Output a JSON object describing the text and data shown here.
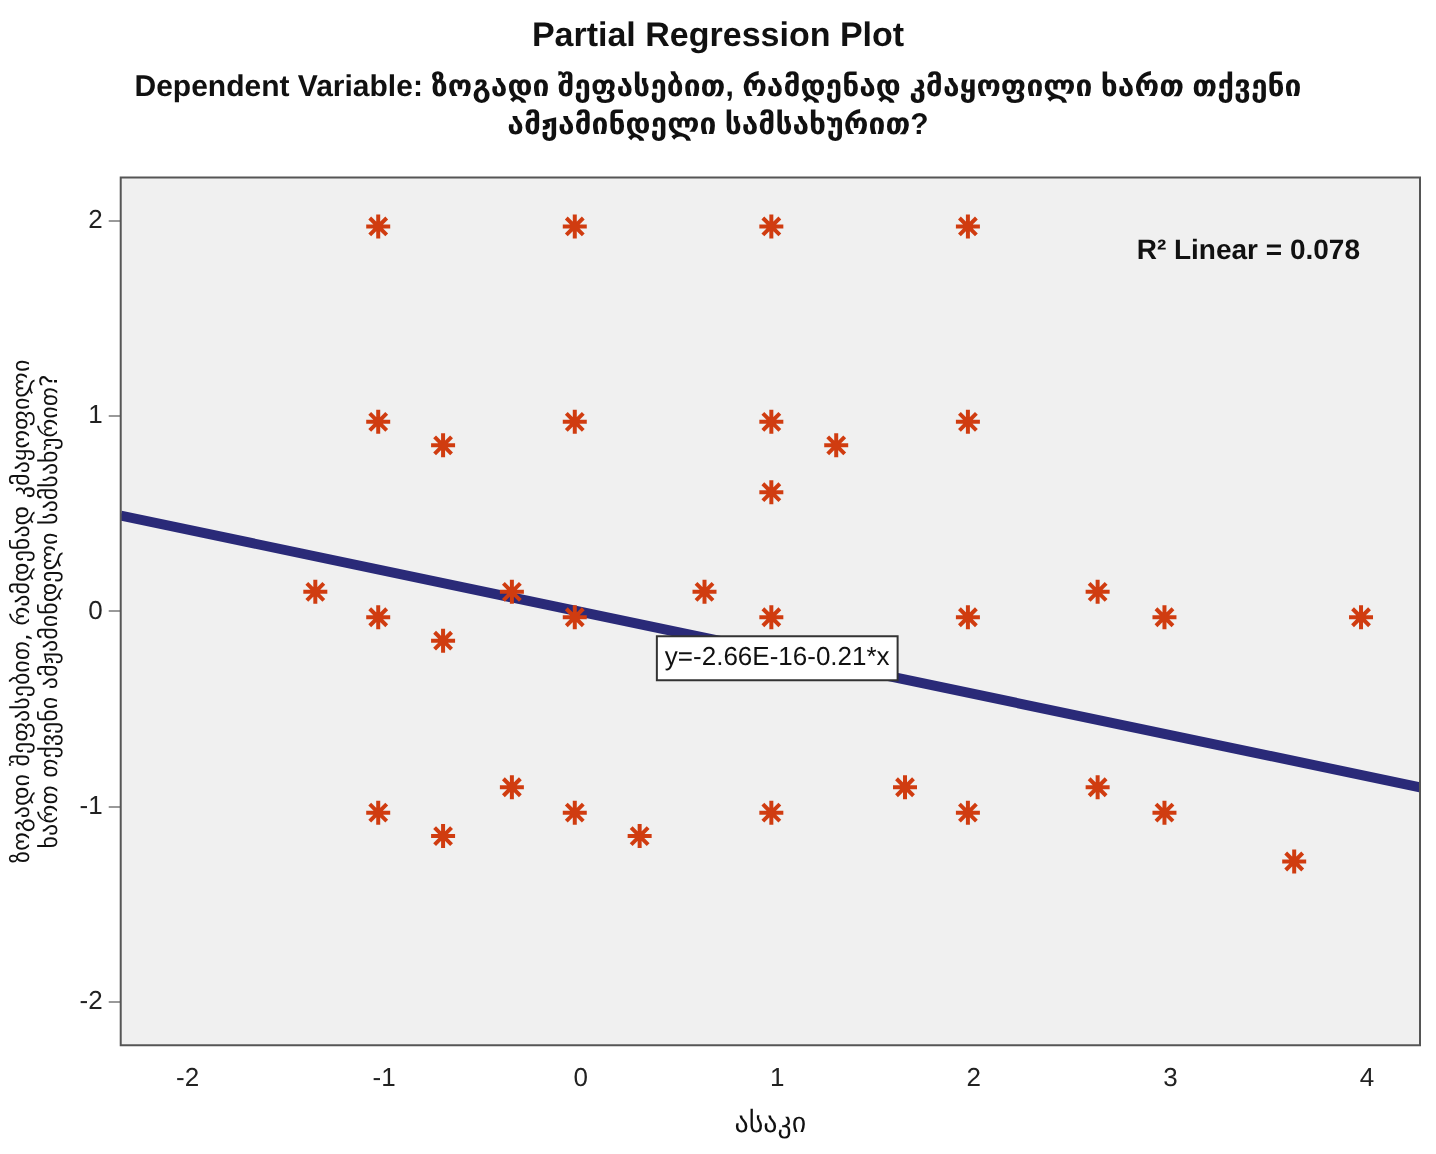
{
  "chart_data": {
    "type": "scatter",
    "title": "Partial Regression Plot",
    "subtitle": "Dependent Variable: ზოგადი შეფასებით, რამდენად კმაყოფილი ხართ თქვენი ამჟამინდელი სამსახურით?",
    "xlabel": "ასაკი",
    "ylabel": "ზოგადი შეფასებით, რამდენად კმაყოფილი ხართ თქვენი ამჟამინდელი სამსახურით?",
    "series": [
      {
        "color": "#d03c10",
        "marker": "cross",
        "x": [
          -1.03,
          -0.03,
          0.97,
          1.97,
          -1.03,
          -0.03,
          0.97,
          1.97,
          -0.7,
          1.3,
          0.97,
          -1.35,
          -0.35,
          0.63,
          2.63,
          -1.03,
          -0.03,
          0.97,
          1.97,
          2.97,
          3.97,
          -0.7,
          -0.35,
          1.65,
          2.63,
          -1.03,
          -0.03,
          0.97,
          1.97,
          2.97,
          -0.7,
          0.3,
          3.63
        ],
        "values": [
          1.97,
          1.97,
          1.97,
          1.97,
          0.97,
          0.97,
          0.97,
          0.97,
          0.85,
          0.85,
          0.61,
          0.1,
          0.1,
          0.1,
          0.1,
          -0.03,
          -0.03,
          -0.03,
          -0.03,
          -0.03,
          -0.03,
          -0.15,
          -0.9,
          -0.9,
          -0.9,
          -1.03,
          -1.03,
          -1.03,
          -1.03,
          -1.03,
          -1.15,
          -1.15,
          -1.28
        ]
      },
      {
        "type": "line",
        "color": "#2a2a78",
        "x": [
          -2.34,
          4.27
        ],
        "values": [
          0.49,
          -0.9
        ]
      }
    ],
    "annotations": [
      {
        "text": "y=-2.66E-16-0.21*x",
        "x": 1.0,
        "y": -0.24
      },
      "R² Linear = 0.078"
    ],
    "xlim": [
      -2.34,
      4.27
    ],
    "ylim": [
      -2.22,
      2.22
    ],
    "xticks": [
      -2,
      -1,
      0,
      1,
      2,
      3,
      4
    ],
    "yticks": [
      -2,
      -1,
      0,
      1,
      2
    ],
    "grid": false,
    "legend": false
  }
}
